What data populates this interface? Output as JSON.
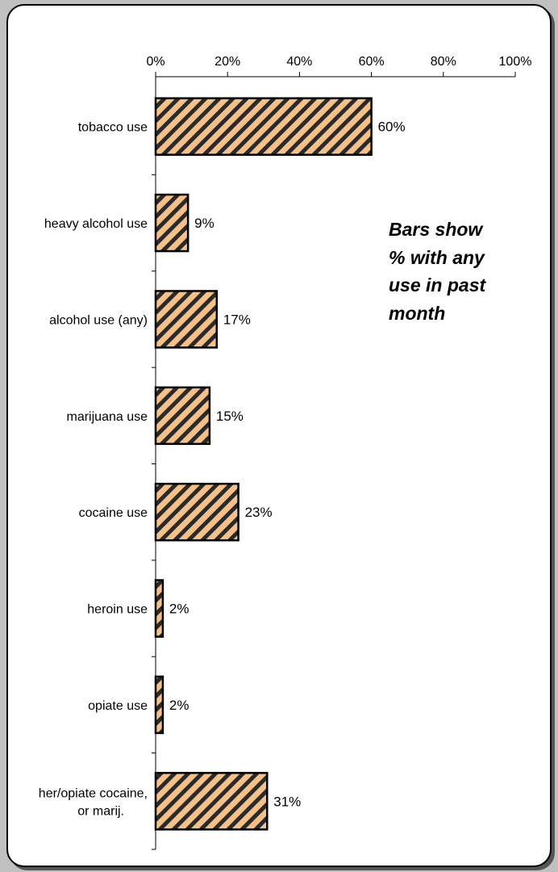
{
  "chart_data": {
    "type": "bar",
    "orientation": "horizontal",
    "categories": [
      "tobacco use",
      "heavy alcohol use",
      "alcohol use (any)",
      "marijuana use",
      "cocaine use",
      "heroin use",
      "opiate use",
      "her/opiate cocaine, or marij."
    ],
    "category_lines": [
      [
        "tobacco use"
      ],
      [
        "heavy alcohol use"
      ],
      [
        "alcohol use (any)"
      ],
      [
        "marijuana use"
      ],
      [
        "cocaine use"
      ],
      [
        "heroin use"
      ],
      [
        "opiate use"
      ],
      [
        "her/opiate cocaine,",
        "or marij."
      ]
    ],
    "values": [
      60,
      9,
      17,
      15,
      23,
      2,
      2,
      31
    ],
    "data_labels": [
      "60%",
      "9%",
      "17%",
      "15%",
      "23%",
      "2%",
      "2%",
      "31%"
    ],
    "xlim": [
      0,
      100
    ],
    "x_ticks": [
      "0%",
      "20%",
      "40%",
      "60%",
      "80%",
      "100%"
    ],
    "x_axis_position": "top",
    "grid": false,
    "bar_fill": "#f5c08a",
    "bar_hatch_color": "#2a2a2a",
    "annotation": "Bars show\n% with any\nuse in past\nmonth"
  }
}
